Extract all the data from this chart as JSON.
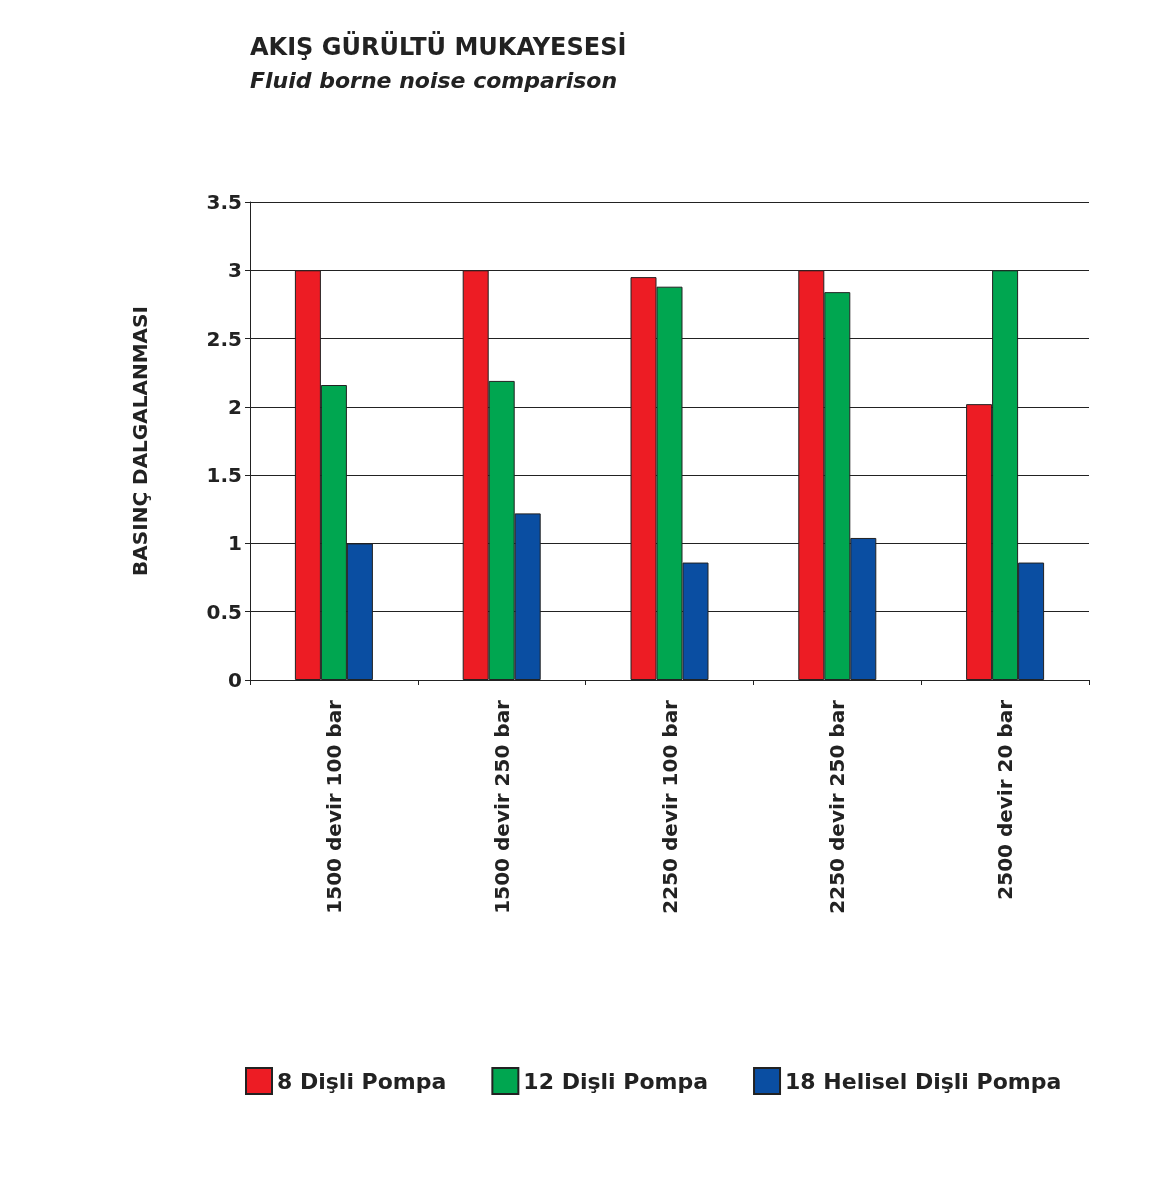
{
  "chart_data": {
    "type": "bar",
    "title": "AKIŞ GÜRÜLTÜ MUKAYESESİ",
    "subtitle": "Fluid borne noise comparison",
    "ylabel": "BASINÇ DALGALANMASI",
    "categories": [
      "1500 devir 100 bar",
      "1500 devir 250 bar",
      "2250 devir 100 bar",
      "2250 devir 250 bar",
      "2500 devir 20 bar"
    ],
    "series": [
      {
        "name": "8 Dişli Pompa",
        "color": "#ed1c24",
        "values": [
          3.0,
          3.0,
          2.95,
          3.0,
          2.02
        ]
      },
      {
        "name": "12 Dişli Pompa",
        "color": "#00a650",
        "values": [
          2.16,
          2.19,
          2.88,
          2.84,
          3.0
        ]
      },
      {
        "name": "18 Helisel Dişli Pompa",
        "color": "#0a4ea2",
        "values": [
          1.0,
          1.22,
          0.86,
          1.04,
          0.86
        ]
      }
    ],
    "ylim": [
      0,
      3.5
    ],
    "yticks": [
      0,
      0.5,
      1,
      1.5,
      2,
      2.5,
      3,
      3.5
    ],
    "grid": "y",
    "legend": "bottom"
  }
}
